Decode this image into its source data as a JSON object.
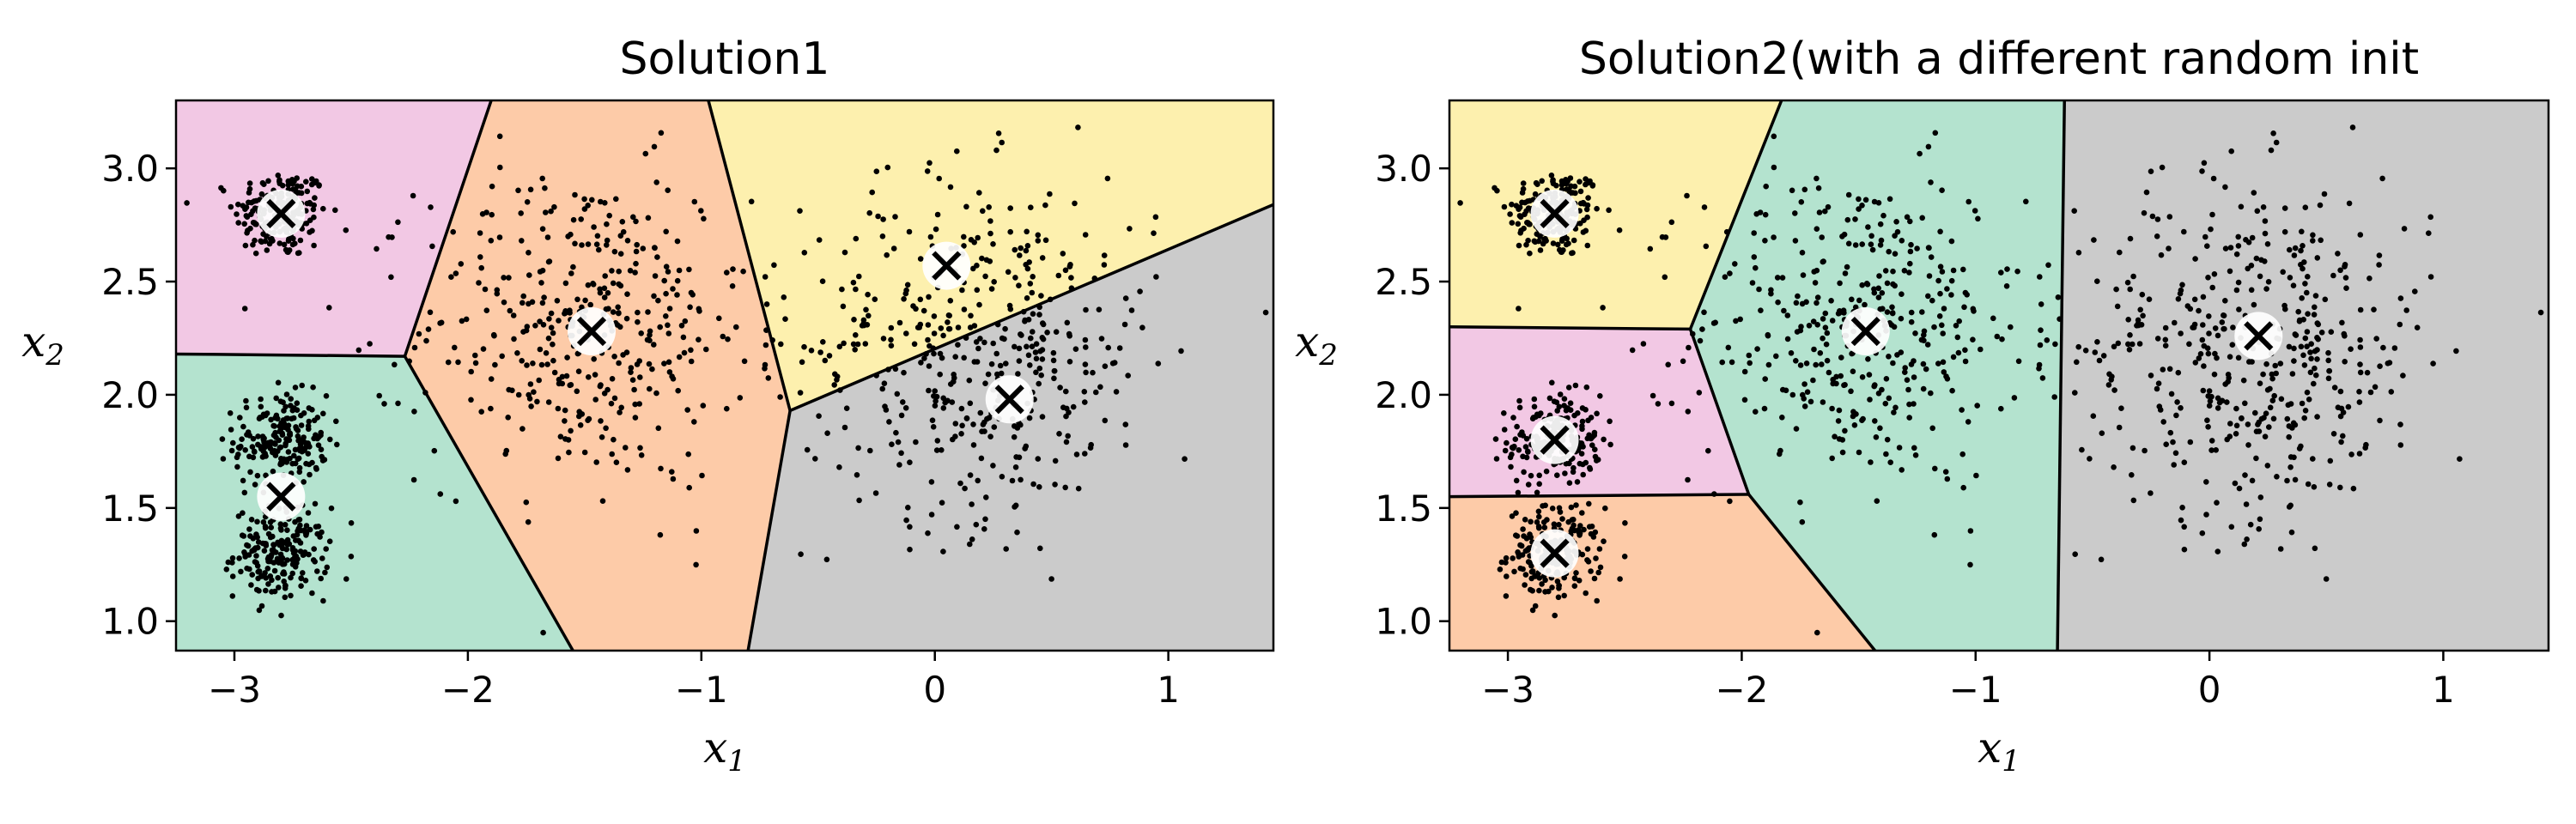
{
  "chart_data": [
    {
      "type": "scatter",
      "title": "Solution1",
      "xlabel": "x1",
      "ylabel": "x2",
      "xlim": [
        -3.25,
        1.45
      ],
      "ylim": [
        0.87,
        3.3
      ],
      "x_ticks": [
        -3,
        -2,
        -1,
        0,
        1
      ],
      "y_ticks": [
        1.0,
        1.5,
        2.0,
        2.5,
        3.0
      ],
      "x_tick_labels": [
        "−3",
        "−2",
        "−1",
        "0",
        "1"
      ],
      "y_tick_labels": [
        "1.0",
        "1.5",
        "2.0",
        "2.5",
        "3.0"
      ],
      "grid": false,
      "regions": [
        {
          "color": "#f2c8e4",
          "polygon": [
            [
              -3.25,
              3.3
            ],
            [
              -1.9,
              3.3
            ],
            [
              -2.27,
              2.17
            ],
            [
              -3.25,
              2.18
            ]
          ]
        },
        {
          "color": "#fdcba8",
          "polygon": [
            [
              -1.9,
              3.3
            ],
            [
              -0.97,
              3.3
            ],
            [
              -0.62,
              1.93
            ],
            [
              -0.8,
              0.87
            ],
            [
              -1.55,
              0.87
            ],
            [
              -2.27,
              2.17
            ]
          ]
        },
        {
          "color": "#fdf0ae",
          "polygon": [
            [
              -0.97,
              3.3
            ],
            [
              1.45,
              3.3
            ],
            [
              1.45,
              2.84
            ],
            [
              -0.62,
              1.93
            ]
          ]
        },
        {
          "color": "#cbcbcb",
          "polygon": [
            [
              1.45,
              2.84
            ],
            [
              1.45,
              0.87
            ],
            [
              -0.8,
              0.87
            ],
            [
              -0.62,
              1.93
            ]
          ]
        },
        {
          "color": "#b4e3cf",
          "polygon": [
            [
              -3.25,
              2.18
            ],
            [
              -2.27,
              2.17
            ],
            [
              -1.55,
              0.87
            ],
            [
              -3.25,
              0.87
            ]
          ]
        }
      ],
      "boundaries": [
        [
          [
            -3.25,
            2.18
          ],
          [
            -2.27,
            2.17
          ]
        ],
        [
          [
            -2.27,
            2.17
          ],
          [
            -1.9,
            3.3
          ]
        ],
        [
          [
            -2.27,
            2.17
          ],
          [
            -1.55,
            0.87
          ]
        ],
        [
          [
            -0.97,
            3.3
          ],
          [
            -0.62,
            1.93
          ]
        ],
        [
          [
            -0.62,
            1.93
          ],
          [
            -0.8,
            0.87
          ]
        ],
        [
          [
            -0.62,
            1.93
          ],
          [
            1.45,
            2.84
          ]
        ]
      ],
      "clusters": [
        {
          "center": [
            -2.8,
            2.8
          ],
          "spread": 0.1,
          "n": 200
        },
        {
          "center": [
            -2.8,
            1.8
          ],
          "spread": 0.1,
          "n": 200
        },
        {
          "center": [
            -2.8,
            1.3
          ],
          "spread": 0.1,
          "n": 200
        },
        {
          "center": [
            -1.5,
            2.3
          ],
          "spread": 0.35,
          "n": 400
        },
        {
          "center": [
            0.2,
            2.2
          ],
          "spread": 0.38,
          "n": 450
        }
      ],
      "centroids": [
        [
          -2.8,
          2.8
        ],
        [
          -2.8,
          1.55
        ],
        [
          -1.47,
          2.28
        ],
        [
          0.05,
          2.57
        ],
        [
          0.32,
          1.98
        ]
      ]
    },
    {
      "type": "scatter",
      "title": "Solution2(with a different random init",
      "xlabel": "x1",
      "ylabel": "x2",
      "xlim": [
        -3.25,
        1.45
      ],
      "ylim": [
        0.87,
        3.3
      ],
      "x_ticks": [
        -3,
        -2,
        -1,
        0,
        1
      ],
      "y_ticks": [
        1.0,
        1.5,
        2.0,
        2.5,
        3.0
      ],
      "x_tick_labels": [
        "−3",
        "−2",
        "−1",
        "0",
        "1"
      ],
      "y_tick_labels": [
        "1.0",
        "1.5",
        "2.0",
        "2.5",
        "3.0"
      ],
      "grid": false,
      "regions": [
        {
          "color": "#fdf0ae",
          "polygon": [
            [
              -3.25,
              3.3
            ],
            [
              -1.83,
              3.3
            ],
            [
              -2.22,
              2.29
            ],
            [
              -3.25,
              2.3
            ]
          ]
        },
        {
          "color": "#f2c8e4",
          "polygon": [
            [
              -3.25,
              2.3
            ],
            [
              -2.22,
              2.29
            ],
            [
              -1.97,
              1.56
            ],
            [
              -3.25,
              1.55
            ]
          ]
        },
        {
          "color": "#fdcba8",
          "polygon": [
            [
              -3.25,
              1.55
            ],
            [
              -1.97,
              1.56
            ],
            [
              -1.43,
              0.87
            ],
            [
              -3.25,
              0.87
            ]
          ]
        },
        {
          "color": "#b4e3cf",
          "polygon": [
            [
              -1.83,
              3.3
            ],
            [
              -0.62,
              3.3
            ],
            [
              -0.65,
              0.87
            ],
            [
              -1.43,
              0.87
            ],
            [
              -1.97,
              1.56
            ],
            [
              -2.22,
              2.29
            ]
          ]
        },
        {
          "color": "#cbcbcb",
          "polygon": [
            [
              -0.62,
              3.3
            ],
            [
              1.45,
              3.3
            ],
            [
              1.45,
              0.87
            ],
            [
              -0.65,
              0.87
            ]
          ]
        }
      ],
      "boundaries": [
        [
          [
            -3.25,
            2.3
          ],
          [
            -2.22,
            2.29
          ]
        ],
        [
          [
            -2.22,
            2.29
          ],
          [
            -1.83,
            3.3
          ]
        ],
        [
          [
            -2.22,
            2.29
          ],
          [
            -1.97,
            1.56
          ]
        ],
        [
          [
            -3.25,
            1.55
          ],
          [
            -1.97,
            1.56
          ]
        ],
        [
          [
            -1.97,
            1.56
          ],
          [
            -1.43,
            0.87
          ]
        ],
        [
          [
            -0.62,
            3.3
          ],
          [
            -0.65,
            0.87
          ]
        ]
      ],
      "clusters": [
        {
          "center": [
            -2.8,
            2.8
          ],
          "spread": 0.1,
          "n": 200
        },
        {
          "center": [
            -2.8,
            1.8
          ],
          "spread": 0.1,
          "n": 200
        },
        {
          "center": [
            -2.8,
            1.3
          ],
          "spread": 0.1,
          "n": 200
        },
        {
          "center": [
            -1.5,
            2.3
          ],
          "spread": 0.35,
          "n": 400
        },
        {
          "center": [
            0.2,
            2.2
          ],
          "spread": 0.38,
          "n": 450
        }
      ],
      "centroids": [
        [
          -2.8,
          2.8
        ],
        [
          -2.8,
          1.8
        ],
        [
          -2.8,
          1.3
        ],
        [
          -1.47,
          2.28
        ],
        [
          0.21,
          2.26
        ]
      ]
    }
  ]
}
